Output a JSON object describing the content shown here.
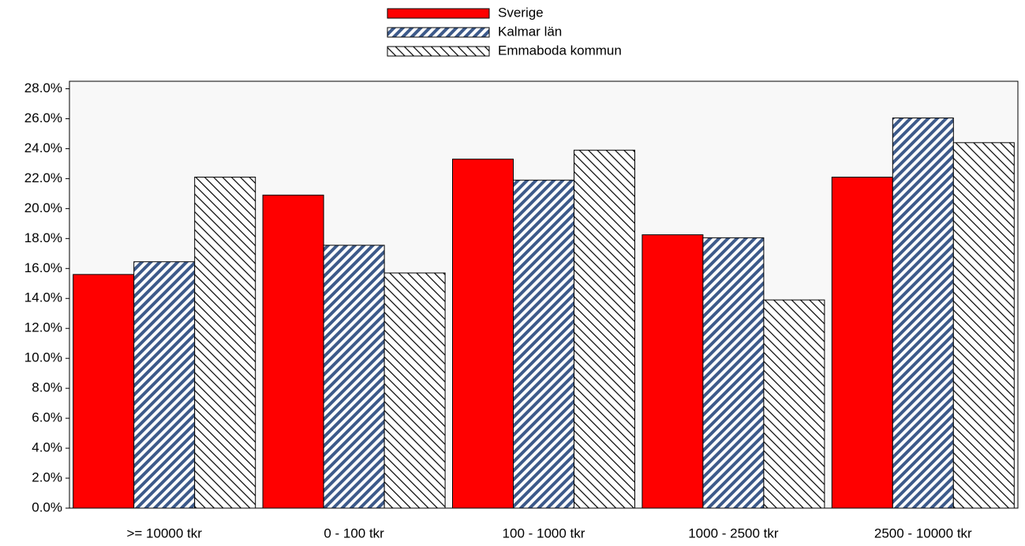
{
  "chart_data": {
    "type": "bar",
    "categories": [
      ">= 10000 tkr",
      "0 - 100 tkr",
      "100 - 1000 tkr",
      "1000 - 2500 tkr",
      "2500 - 10000 tkr"
    ],
    "series": [
      {
        "name": "Sverige",
        "color": "#ff0000",
        "hatch": "none",
        "values": [
          15.6,
          20.9,
          23.3,
          18.25,
          22.1
        ]
      },
      {
        "name": "Kalmar län",
        "color": "#3d5a8a",
        "hatch": "/",
        "values": [
          16.45,
          17.55,
          21.9,
          18.05,
          26.05
        ]
      },
      {
        "name": "Emmaboda kommun",
        "color": "#000000",
        "hatch": "\\",
        "values": [
          22.1,
          15.7,
          23.9,
          13.9,
          24.4
        ]
      }
    ],
    "ylim": [
      0,
      28.5
    ],
    "yticks": [
      {
        "value": 0,
        "label": "0.0%"
      },
      {
        "value": 2,
        "label": "2.0%"
      },
      {
        "value": 4,
        "label": "4.0%"
      },
      {
        "value": 6,
        "label": "6.0%"
      },
      {
        "value": 8,
        "label": "8.0%"
      },
      {
        "value": 10,
        "label": "10.0%"
      },
      {
        "value": 12,
        "label": "12.0%"
      },
      {
        "value": 14,
        "label": "14.0%"
      },
      {
        "value": 16,
        "label": "16.0%"
      },
      {
        "value": 18,
        "label": "18.0%"
      },
      {
        "value": 20,
        "label": "20.0%"
      },
      {
        "value": 22,
        "label": "22.0%"
      },
      {
        "value": 24,
        "label": "24.0%"
      },
      {
        "value": 26,
        "label": "26.0%"
      },
      {
        "value": 28,
        "label": "28.0%"
      }
    ],
    "legend": "top"
  }
}
